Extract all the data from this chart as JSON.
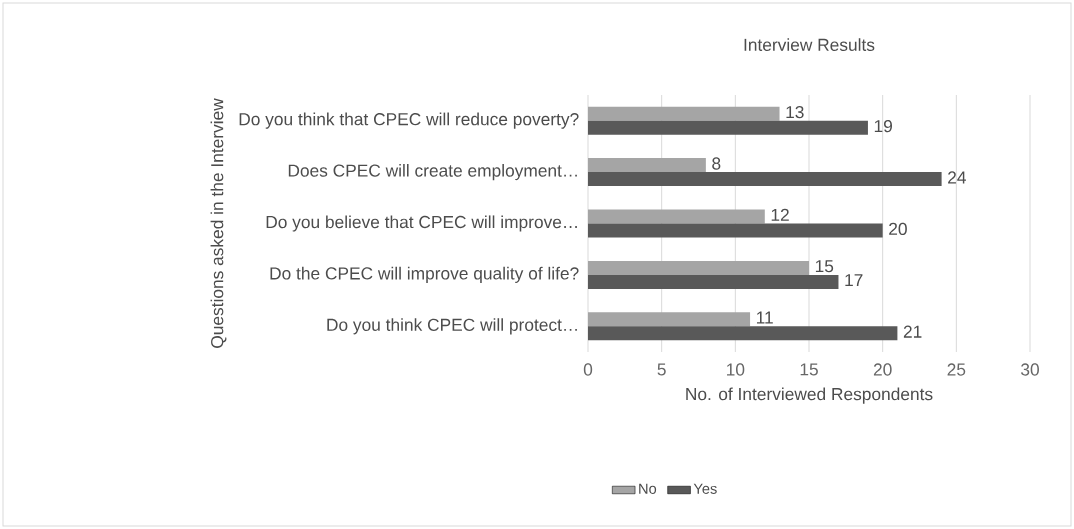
{
  "chart_data": {
    "type": "bar",
    "orientation": "horizontal",
    "title": "Interview Results",
    "xlabel": "No. of Interviewed Respondents",
    "ylabel": "Questions asked in the Interview",
    "categories": [
      "Do you think that CPEC will reduce poverty?",
      "Does CPEC will create employment…",
      "Do you believe that CPEC will improve…",
      "Do the CPEC will improve quality of life?",
      "Do you think CPEC will protect…"
    ],
    "series": [
      {
        "name": "No",
        "color": "#a5a5a5",
        "values": [
          13,
          8,
          12,
          15,
          11
        ]
      },
      {
        "name": "Yes",
        "color": "#595959",
        "values": [
          19,
          24,
          20,
          17,
          21
        ]
      }
    ],
    "xlim": [
      0,
      30
    ],
    "xticks": [
      0,
      5,
      10,
      15,
      20,
      25,
      30
    ],
    "grid": "x",
    "legend": "bottom",
    "data_labels": true
  }
}
